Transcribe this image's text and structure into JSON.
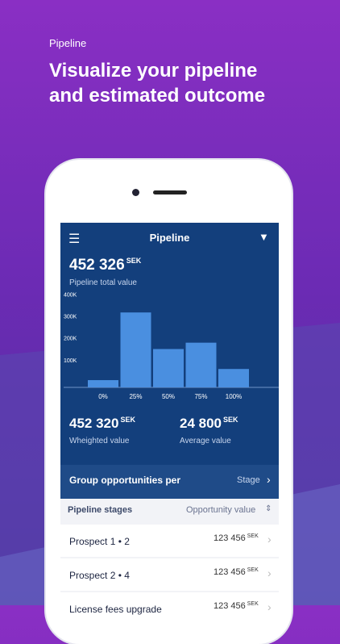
{
  "header": {
    "eyebrow": "Pipeline",
    "headline_lines": [
      "Visualize your pipeline",
      "and estimated outcome"
    ]
  },
  "app": {
    "nav_title": "Pipeline",
    "total": {
      "value": "452 326",
      "unit": "SEK",
      "label": "Pipeline total value"
    },
    "chart_data": {
      "type": "bar",
      "categories": [
        "0%",
        "25%",
        "50%",
        "75%",
        "100%"
      ],
      "values": [
        33000,
        342000,
        175000,
        204000,
        84000
      ],
      "color": "#4a8fe0",
      "ylim": [
        0,
        420000
      ],
      "yticks": [
        {
          "value": 100000,
          "label": "100K"
        },
        {
          "value": 200000,
          "label": "200K"
        },
        {
          "value": 300000,
          "label": "300K"
        },
        {
          "value": 400000,
          "label": "400K"
        }
      ]
    },
    "stats": [
      {
        "value": "452 320",
        "unit": "SEK",
        "label": "Wheighted value"
      },
      {
        "value": "24 800",
        "unit": "SEK",
        "label": "Average value"
      }
    ],
    "group": {
      "label": "Group opportunities per",
      "value": "Stage"
    },
    "list_header": {
      "title": "Pipeline stages",
      "sort": "Opportunity value"
    },
    "rows": [
      {
        "name": "Prospect 1 • 2",
        "value": "123 456",
        "unit": "SEK"
      },
      {
        "name": "Prospect 2 • 4",
        "value": "123 456",
        "unit": "SEK"
      },
      {
        "name": "License fees upgrade",
        "value": "123 456",
        "unit": "SEK"
      }
    ]
  }
}
